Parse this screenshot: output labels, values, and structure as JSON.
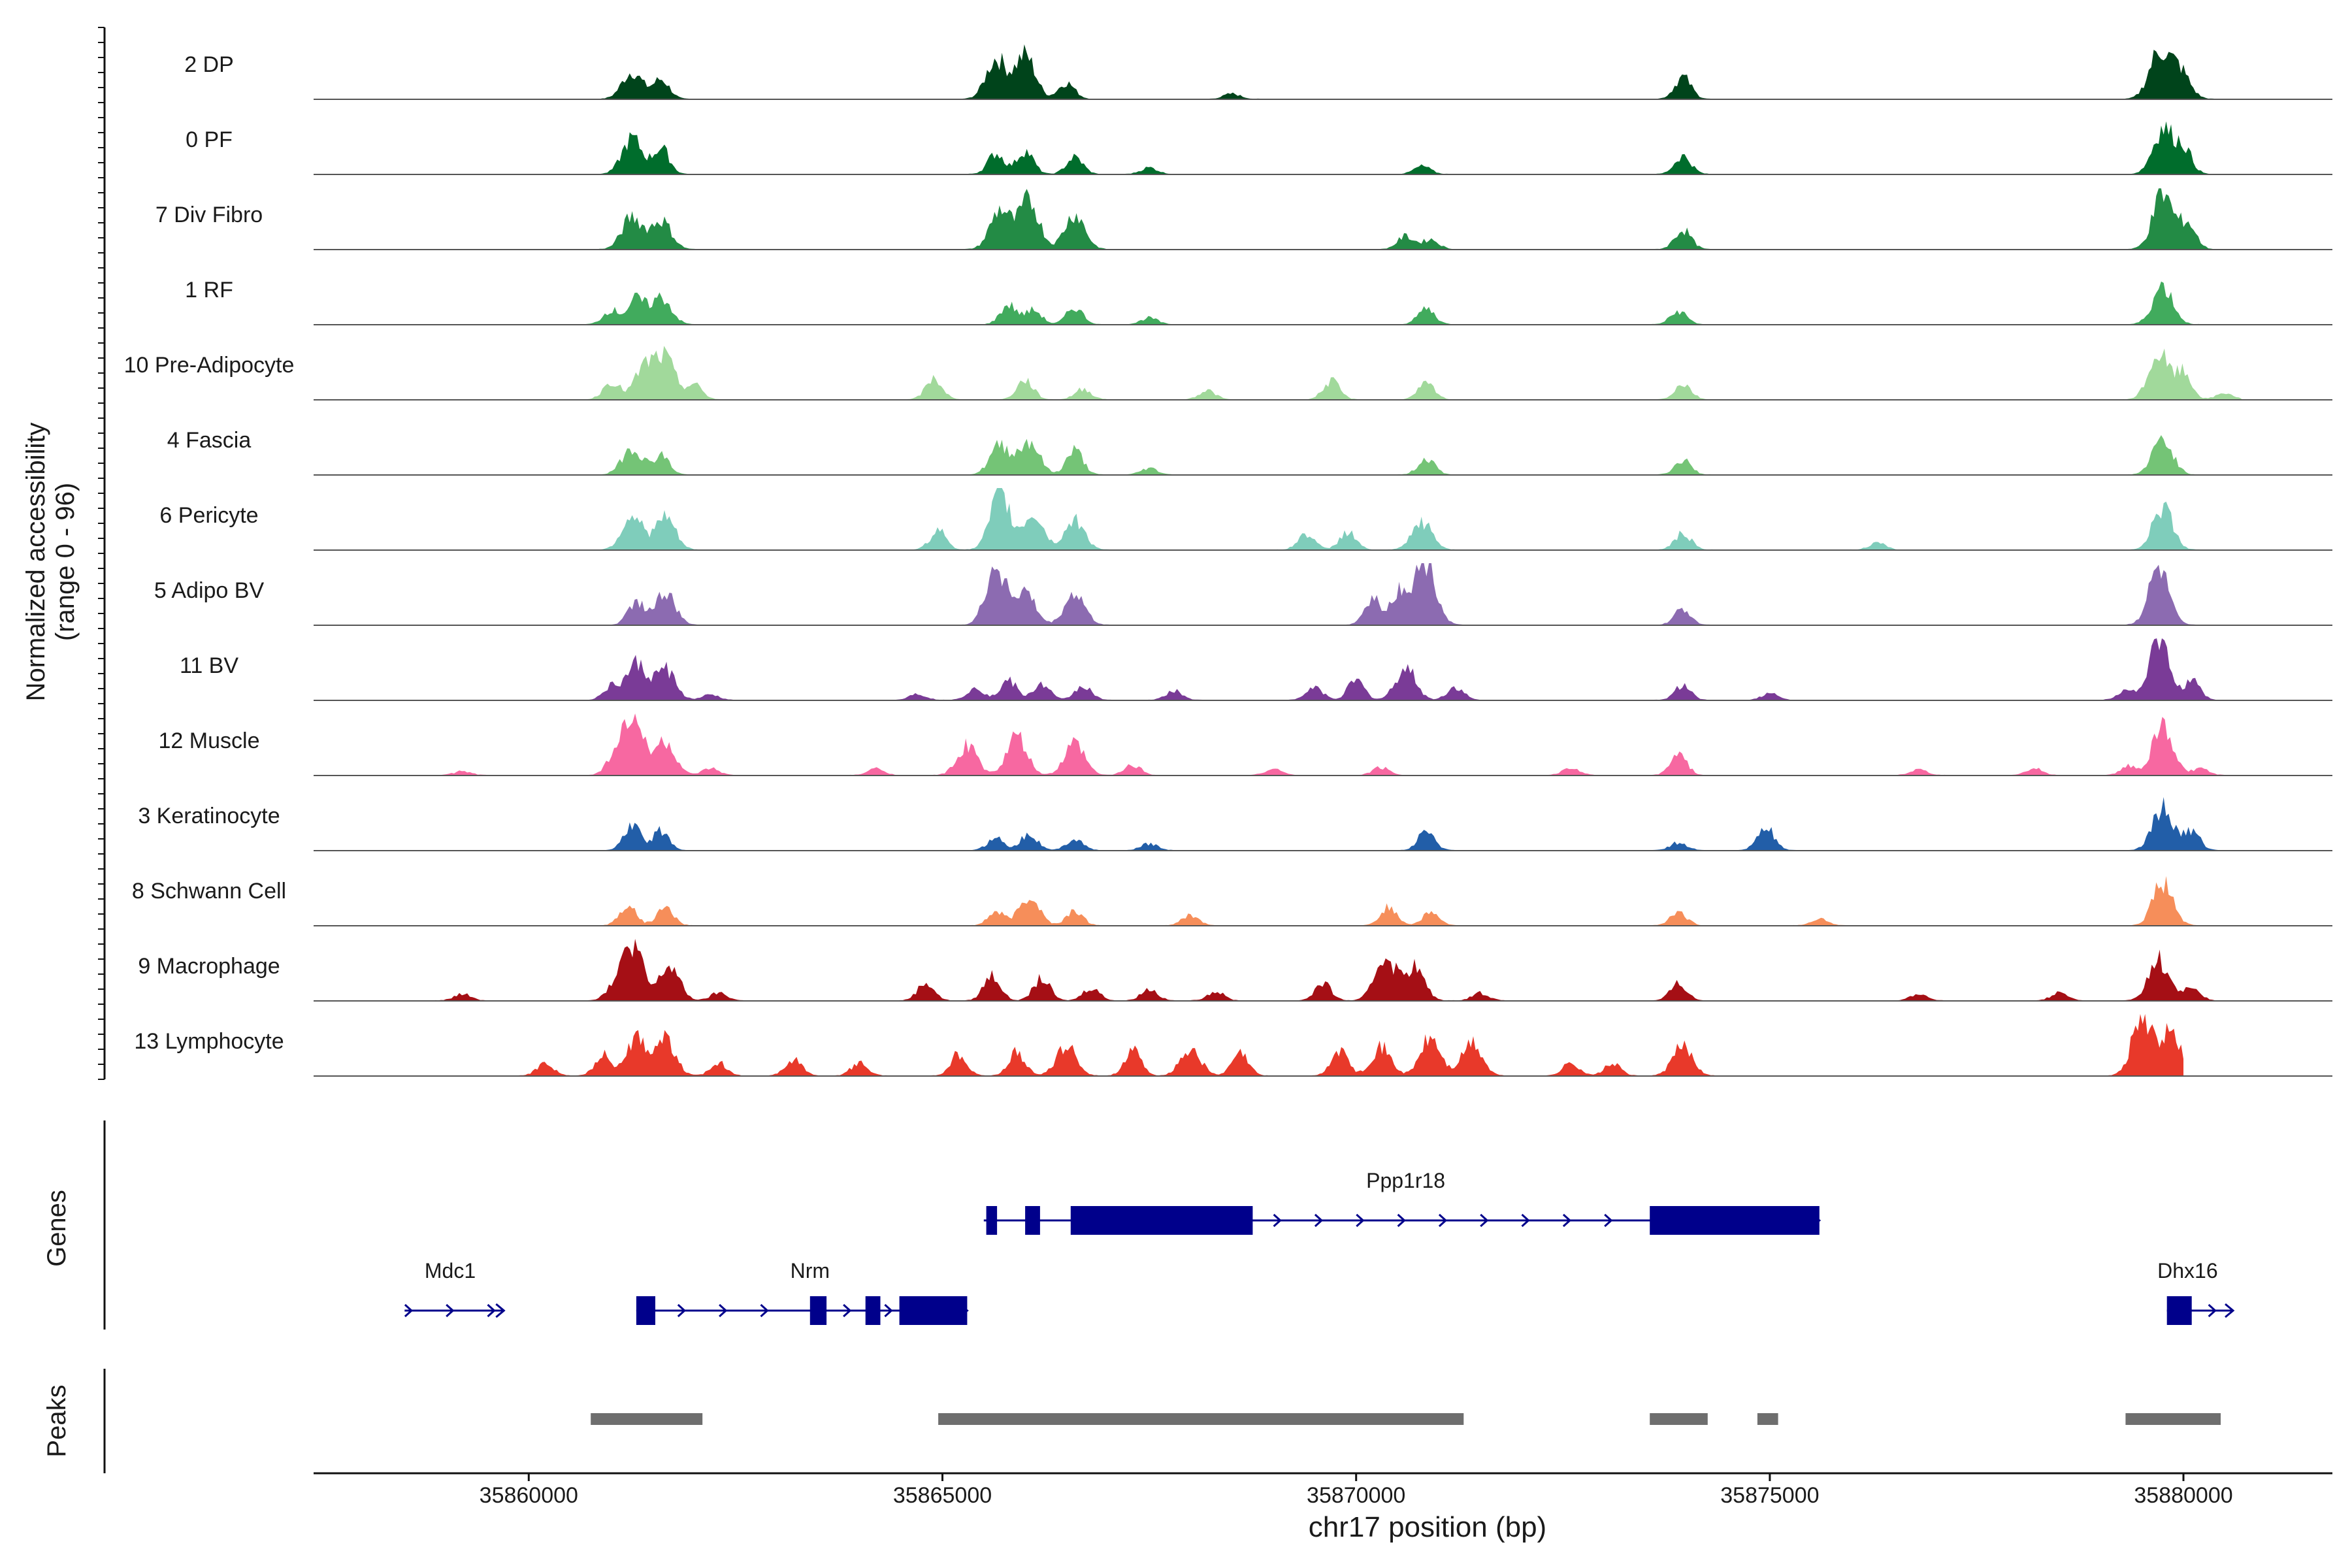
{
  "chart_data": {
    "type": "area",
    "title": "",
    "xlabel": "chr17 position (bp)",
    "ylabel": "Normalized accessibility",
    "ylabel_sub": "(range 0 - 96)",
    "xlim": [
      35857400,
      35881800
    ],
    "ylim": [
      0,
      96
    ],
    "x_ticks": [
      35860000,
      35865000,
      35870000,
      35875000,
      35880000
    ],
    "x_tick_labels": [
      "35860000",
      "35865000",
      "35870000",
      "35875000",
      "35880000"
    ],
    "genes_panel_label": "Genes",
    "peaks_panel_label": "Peaks",
    "tracks": [
      {
        "name": "2 DP",
        "color": "#00441b",
        "region": [
          35859600,
          35880600
        ],
        "peaks": [
          [
            35861250,
            42
          ],
          [
            35861600,
            30
          ],
          [
            35865650,
            62
          ],
          [
            35866000,
            68
          ],
          [
            35866500,
            25
          ],
          [
            35868500,
            8
          ],
          [
            35873950,
            34
          ],
          [
            35879700,
            70
          ],
          [
            35879950,
            45
          ]
        ]
      },
      {
        "name": "0 PF",
        "color": "#006d2c",
        "region": [
          35859600,
          35880600
        ],
        "peaks": [
          [
            35861250,
            55
          ],
          [
            35861600,
            40
          ],
          [
            35865650,
            32
          ],
          [
            35866000,
            36
          ],
          [
            35866600,
            26
          ],
          [
            35867500,
            10
          ],
          [
            35870800,
            12
          ],
          [
            35873950,
            28
          ],
          [
            35879750,
            70
          ],
          [
            35880000,
            40
          ]
        ]
      },
      {
        "name": "7 Div Fibro",
        "color": "#238b45",
        "region": [
          35859600,
          35880600
        ],
        "peaks": [
          [
            35861250,
            50
          ],
          [
            35861600,
            45
          ],
          [
            35865700,
            62
          ],
          [
            35866050,
            75
          ],
          [
            35866600,
            55
          ],
          [
            35870600,
            20
          ],
          [
            35870900,
            15
          ],
          [
            35873950,
            30
          ],
          [
            35879750,
            86
          ],
          [
            35880050,
            40
          ]
        ]
      },
      {
        "name": "1 RF",
        "color": "#41ab5d",
        "region": [
          35859600,
          35880600
        ],
        "peaks": [
          [
            35861000,
            22
          ],
          [
            35861300,
            38
          ],
          [
            35861600,
            42
          ],
          [
            35865800,
            30
          ],
          [
            35866100,
            22
          ],
          [
            35866600,
            26
          ],
          [
            35867500,
            10
          ],
          [
            35870850,
            25
          ],
          [
            35873900,
            20
          ],
          [
            35879750,
            60
          ]
        ]
      },
      {
        "name": "10 Pre-Adipocyte",
        "color": "#a1d99b",
        "region": [
          35859000,
          35880700
        ],
        "peaks": [
          [
            35861000,
            28
          ],
          [
            35861400,
            48
          ],
          [
            35861650,
            60
          ],
          [
            35862000,
            22
          ],
          [
            35864900,
            32
          ],
          [
            35866000,
            30
          ],
          [
            35866700,
            16
          ],
          [
            35868200,
            14
          ],
          [
            35869700,
            28
          ],
          [
            35870850,
            24
          ],
          [
            35873950,
            24
          ],
          [
            35879700,
            70
          ],
          [
            35880000,
            40
          ],
          [
            35880500,
            10
          ]
        ]
      },
      {
        "name": "4 Fascia",
        "color": "#74c476",
        "region": [
          35859600,
          35880600
        ],
        "peaks": [
          [
            35861250,
            42
          ],
          [
            35861600,
            30
          ],
          [
            35865700,
            45
          ],
          [
            35866050,
            52
          ],
          [
            35866600,
            38
          ],
          [
            35867500,
            10
          ],
          [
            35870850,
            25
          ],
          [
            35873950,
            22
          ],
          [
            35879750,
            55
          ]
        ]
      },
      {
        "name": "6 Pericyte",
        "color": "#7fcdbb",
        "region": [
          35859600,
          35880600
        ],
        "peaks": [
          [
            35861250,
            55
          ],
          [
            35861650,
            50
          ],
          [
            35864950,
            30
          ],
          [
            35865700,
            85
          ],
          [
            35866100,
            55
          ],
          [
            35866600,
            45
          ],
          [
            35869400,
            25
          ],
          [
            35869900,
            28
          ],
          [
            35870800,
            42
          ],
          [
            35873950,
            25
          ],
          [
            35876300,
            10
          ],
          [
            35879750,
            65
          ]
        ]
      },
      {
        "name": "5 Adipo BV",
        "color": "#8c6bb1",
        "region": [
          35859600,
          35880600
        ],
        "peaks": [
          [
            35861300,
            36
          ],
          [
            35861650,
            48
          ],
          [
            35865650,
            92
          ],
          [
            35866000,
            50
          ],
          [
            35866600,
            48
          ],
          [
            35870200,
            40
          ],
          [
            35870550,
            54
          ],
          [
            35870850,
            96
          ],
          [
            35873950,
            24
          ],
          [
            35879700,
            86
          ]
        ]
      },
      {
        "name": "11 BV",
        "color": "#7a3b97",
        "region": [
          35859000,
          35880700
        ],
        "peaks": [
          [
            35861000,
            20
          ],
          [
            35861300,
            55
          ],
          [
            35861650,
            48
          ],
          [
            35862200,
            8
          ],
          [
            35864700,
            10
          ],
          [
            35865400,
            20
          ],
          [
            35865800,
            30
          ],
          [
            35866200,
            25
          ],
          [
            35866700,
            22
          ],
          [
            35867800,
            14
          ],
          [
            35869500,
            20
          ],
          [
            35870000,
            30
          ],
          [
            35870600,
            50
          ],
          [
            35871200,
            20
          ],
          [
            35873950,
            22
          ],
          [
            35875000,
            10
          ],
          [
            35879300,
            16
          ],
          [
            35879700,
            94
          ],
          [
            35880100,
            30
          ]
        ]
      },
      {
        "name": "12 Muscle",
        "color": "#f768a1",
        "region": [
          35858400,
          35880600
        ],
        "peaks": [
          [
            35859200,
            6
          ],
          [
            35861100,
            45
          ],
          [
            35861300,
            68
          ],
          [
            35861650,
            50
          ],
          [
            35862200,
            10
          ],
          [
            35864200,
            10
          ],
          [
            35865300,
            45
          ],
          [
            35865900,
            58
          ],
          [
            35866600,
            48
          ],
          [
            35867300,
            16
          ],
          [
            35869000,
            10
          ],
          [
            35870300,
            12
          ],
          [
            35872600,
            12
          ],
          [
            35873900,
            32
          ],
          [
            35876800,
            8
          ],
          [
            35878200,
            10
          ],
          [
            35879350,
            14
          ],
          [
            35879750,
            76
          ],
          [
            35880200,
            10
          ]
        ]
      },
      {
        "name": "3 Keratinocyte",
        "color": "#225ea8",
        "region": [
          35859600,
          35880600
        ],
        "peaks": [
          [
            35861250,
            38
          ],
          [
            35861600,
            30
          ],
          [
            35865650,
            20
          ],
          [
            35866050,
            26
          ],
          [
            35866600,
            18
          ],
          [
            35867500,
            10
          ],
          [
            35870850,
            30
          ],
          [
            35873900,
            12
          ],
          [
            35874950,
            36
          ],
          [
            35879750,
            66
          ],
          [
            35880100,
            30
          ]
        ]
      },
      {
        "name": "8 Schwann Cell",
        "color": "#f68e5a",
        "region": [
          35859600,
          35880600
        ],
        "peaks": [
          [
            35861200,
            32
          ],
          [
            35861650,
            28
          ],
          [
            35865650,
            20
          ],
          [
            35866050,
            44
          ],
          [
            35866600,
            22
          ],
          [
            35868000,
            16
          ],
          [
            35870400,
            28
          ],
          [
            35870900,
            20
          ],
          [
            35873900,
            20
          ],
          [
            35875600,
            10
          ],
          [
            35879750,
            66
          ]
        ]
      },
      {
        "name": "9 Macrophage",
        "color": "#a50f15",
        "region": [
          35858400,
          35880600
        ],
        "peaks": [
          [
            35859200,
            10
          ],
          [
            35861000,
            14
          ],
          [
            35861250,
            92
          ],
          [
            35861700,
            54
          ],
          [
            35862300,
            12
          ],
          [
            35864800,
            28
          ],
          [
            35865600,
            40
          ],
          [
            35866200,
            34
          ],
          [
            35866800,
            20
          ],
          [
            35867500,
            18
          ],
          [
            35868300,
            14
          ],
          [
            35869600,
            26
          ],
          [
            35870350,
            70
          ],
          [
            35870700,
            52
          ],
          [
            35871500,
            12
          ],
          [
            35873900,
            26
          ],
          [
            35876800,
            10
          ],
          [
            35878500,
            12
          ],
          [
            35879700,
            64
          ],
          [
            35880100,
            20
          ]
        ]
      },
      {
        "name": "13 Lymphocyte",
        "color": "#e8392a",
        "region": [
          35859700,
          35880000
        ],
        "peaks": [
          [
            35860200,
            20
          ],
          [
            35860900,
            32
          ],
          [
            35861300,
            60
          ],
          [
            35861650,
            56
          ],
          [
            35862300,
            20
          ],
          [
            35863200,
            26
          ],
          [
            35864000,
            20
          ],
          [
            35865200,
            34
          ],
          [
            35865900,
            36
          ],
          [
            35866500,
            46
          ],
          [
            35867300,
            38
          ],
          [
            35868000,
            42
          ],
          [
            35868600,
            34
          ],
          [
            35869800,
            40
          ],
          [
            35870300,
            44
          ],
          [
            35870900,
            58
          ],
          [
            35871400,
            50
          ],
          [
            35872600,
            20
          ],
          [
            35873100,
            18
          ],
          [
            35873950,
            46
          ],
          [
            35879500,
            94
          ],
          [
            35879850,
            66
          ]
        ]
      }
    ],
    "genes": [
      {
        "name": "Ppp1r18",
        "label_x": 35870600,
        "row": 0,
        "span": [
          35865500,
          35875600
        ],
        "exons": [
          [
            35865530,
            35865660
          ],
          [
            35866000,
            35866180
          ],
          [
            35866550,
            35868750
          ],
          [
            35873550,
            35875600
          ]
        ]
      },
      {
        "name": "Mdc1",
        "label_x": 35859050,
        "row": 1,
        "span": [
          35858500,
          35859700
        ],
        "exons": []
      },
      {
        "name": "Nrm",
        "label_x": 35863400,
        "row": 1,
        "span": [
          35861300,
          35865300
        ],
        "exons": [
          [
            35861300,
            35861530
          ],
          [
            35863400,
            35863600
          ],
          [
            35864070,
            35864250
          ],
          [
            35864480,
            35865300
          ]
        ]
      },
      {
        "name": "Dhx16",
        "label_x": 35880050,
        "row": 1,
        "span": [
          35879800,
          35880600
        ],
        "exons": [
          [
            35879800,
            35880100
          ]
        ]
      }
    ],
    "peak_regions": [
      [
        35860750,
        35862100
      ],
      [
        35864950,
        35871300
      ],
      [
        35873550,
        35874250
      ],
      [
        35874850,
        35875100
      ],
      [
        35879300,
        35880450
      ]
    ]
  }
}
